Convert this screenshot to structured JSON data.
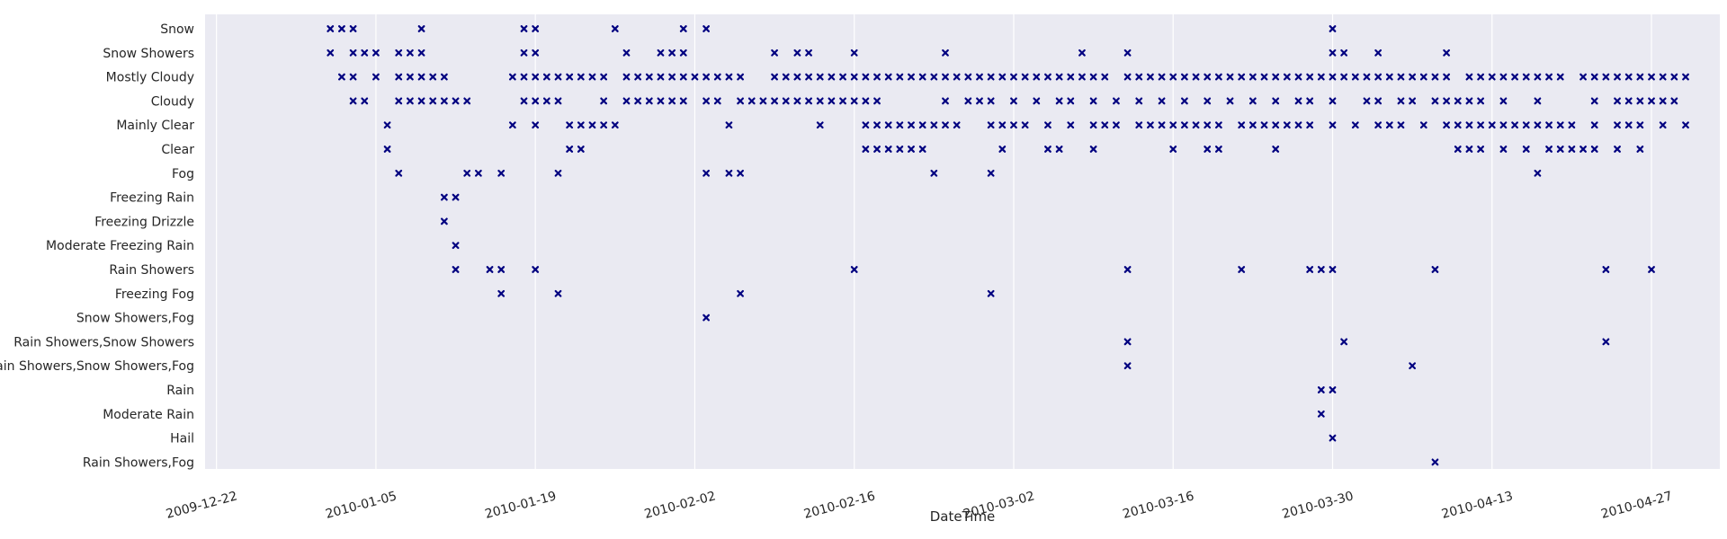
{
  "chart_data": {
    "type": "scatter",
    "xlabel": "DateTime",
    "marker": "x",
    "marker_color": "#000080",
    "background_color": "#EAEAF2",
    "grid": "x-only",
    "x_ticks": [
      "2009-12-22",
      "2010-01-05",
      "2010-01-19",
      "2010-02-02",
      "2010-02-16",
      "2010-03-02",
      "2010-03-16",
      "2010-03-30",
      "2010-04-13",
      "2010-04-27"
    ],
    "xlim": [
      "2009-12-21",
      "2010-05-03"
    ],
    "categories": [
      "Snow",
      "Snow Showers",
      "Mostly Cloudy",
      "Cloudy",
      "Mainly Clear",
      "Clear",
      "Fog",
      "Freezing Rain",
      "Freezing Drizzle",
      "Moderate Freezing Rain",
      "Rain Showers",
      "Freezing Fog",
      "Snow Showers,Fog",
      "Rain Showers,Snow Showers",
      "Rain Showers,Snow Showers,Fog",
      "Rain",
      "Moderate Rain",
      "Hail",
      "Rain Showers,Fog"
    ],
    "points": {
      "Snow": [
        "2010-01-01",
        "2010-01-02",
        "2010-01-03",
        "2010-01-09",
        "2010-01-18",
        "2010-01-19",
        "2010-01-26",
        "2010-02-01",
        "2010-02-03",
        "2010-03-30"
      ],
      "Snow Showers": [
        "2010-01-01",
        "2010-01-03",
        "2010-01-04",
        "2010-01-05",
        "2010-01-07",
        "2010-01-08",
        "2010-01-09",
        "2010-01-18",
        "2010-01-19",
        "2010-01-27",
        "2010-01-30",
        "2010-01-31",
        "2010-02-01",
        "2010-02-09",
        "2010-02-11",
        "2010-02-12",
        "2010-02-16",
        "2010-02-24",
        "2010-03-08",
        "2010-03-12",
        "2010-03-30",
        "2010-03-31",
        "2010-04-03",
        "2010-04-09"
      ],
      "Mostly Cloudy": [
        "2010-01-02",
        "2010-01-03",
        "2010-01-05",
        "2010-01-07",
        "2010-01-08",
        "2010-01-09",
        "2010-01-10",
        "2010-01-11",
        "2010-01-17",
        "2010-01-18",
        "2010-01-19",
        "2010-01-20",
        "2010-01-21",
        "2010-01-22",
        "2010-01-23",
        "2010-01-24",
        "2010-01-25",
        "2010-01-27",
        "2010-01-28",
        "2010-01-29",
        "2010-01-30",
        "2010-01-31",
        "2010-02-01",
        "2010-02-02",
        "2010-02-03",
        "2010-02-04",
        "2010-02-05",
        "2010-02-06",
        "2010-02-09",
        "2010-02-10",
        "2010-02-11",
        "2010-02-12",
        "2010-02-13",
        "2010-02-14",
        "2010-02-15",
        "2010-02-16",
        "2010-02-17",
        "2010-02-18",
        "2010-02-19",
        "2010-02-20",
        "2010-02-21",
        "2010-02-22",
        "2010-02-23",
        "2010-02-24",
        "2010-02-25",
        "2010-02-26",
        "2010-02-27",
        "2010-02-28",
        "2010-03-01",
        "2010-03-02",
        "2010-03-03",
        "2010-03-04",
        "2010-03-05",
        "2010-03-06",
        "2010-03-07",
        "2010-03-08",
        "2010-03-09",
        "2010-03-10",
        "2010-03-12",
        "2010-03-13",
        "2010-03-14",
        "2010-03-15",
        "2010-03-16",
        "2010-03-17",
        "2010-03-18",
        "2010-03-19",
        "2010-03-20",
        "2010-03-21",
        "2010-03-22",
        "2010-03-23",
        "2010-03-24",
        "2010-03-25",
        "2010-03-26",
        "2010-03-27",
        "2010-03-28",
        "2010-03-29",
        "2010-03-30",
        "2010-03-31",
        "2010-04-01",
        "2010-04-02",
        "2010-04-03",
        "2010-04-04",
        "2010-04-05",
        "2010-04-06",
        "2010-04-07",
        "2010-04-08",
        "2010-04-09",
        "2010-04-11",
        "2010-04-12",
        "2010-04-13",
        "2010-04-14",
        "2010-04-15",
        "2010-04-16",
        "2010-04-17",
        "2010-04-18",
        "2010-04-19",
        "2010-04-21",
        "2010-04-22",
        "2010-04-23",
        "2010-04-24",
        "2010-04-25",
        "2010-04-26",
        "2010-04-27",
        "2010-04-28",
        "2010-04-29",
        "2010-04-30"
      ],
      "Cloudy": [
        "2010-01-03",
        "2010-01-04",
        "2010-01-07",
        "2010-01-08",
        "2010-01-09",
        "2010-01-10",
        "2010-01-11",
        "2010-01-12",
        "2010-01-13",
        "2010-01-18",
        "2010-01-19",
        "2010-01-20",
        "2010-01-21",
        "2010-01-25",
        "2010-01-27",
        "2010-01-28",
        "2010-01-29",
        "2010-01-30",
        "2010-01-31",
        "2010-02-01",
        "2010-02-03",
        "2010-02-04",
        "2010-02-06",
        "2010-02-07",
        "2010-02-08",
        "2010-02-09",
        "2010-02-10",
        "2010-02-11",
        "2010-02-12",
        "2010-02-13",
        "2010-02-14",
        "2010-02-15",
        "2010-02-16",
        "2010-02-17",
        "2010-02-18",
        "2010-02-24",
        "2010-02-26",
        "2010-02-27",
        "2010-02-28",
        "2010-03-02",
        "2010-03-04",
        "2010-03-06",
        "2010-03-07",
        "2010-03-09",
        "2010-03-11",
        "2010-03-13",
        "2010-03-15",
        "2010-03-17",
        "2010-03-19",
        "2010-03-21",
        "2010-03-23",
        "2010-03-25",
        "2010-03-27",
        "2010-03-28",
        "2010-03-30",
        "2010-04-02",
        "2010-04-03",
        "2010-04-05",
        "2010-04-06",
        "2010-04-08",
        "2010-04-09",
        "2010-04-10",
        "2010-04-11",
        "2010-04-12",
        "2010-04-14",
        "2010-04-17",
        "2010-04-22",
        "2010-04-24",
        "2010-04-25",
        "2010-04-26",
        "2010-04-27",
        "2010-04-28",
        "2010-04-29"
      ],
      "Mainly Clear": [
        "2010-01-06",
        "2010-01-17",
        "2010-01-19",
        "2010-01-22",
        "2010-01-23",
        "2010-01-24",
        "2010-01-25",
        "2010-01-26",
        "2010-02-05",
        "2010-02-13",
        "2010-02-17",
        "2010-02-18",
        "2010-02-19",
        "2010-02-20",
        "2010-02-21",
        "2010-02-22",
        "2010-02-23",
        "2010-02-24",
        "2010-02-25",
        "2010-02-28",
        "2010-03-01",
        "2010-03-02",
        "2010-03-03",
        "2010-03-05",
        "2010-03-07",
        "2010-03-09",
        "2010-03-10",
        "2010-03-11",
        "2010-03-13",
        "2010-03-14",
        "2010-03-15",
        "2010-03-16",
        "2010-03-17",
        "2010-03-18",
        "2010-03-19",
        "2010-03-20",
        "2010-03-22",
        "2010-03-23",
        "2010-03-24",
        "2010-03-25",
        "2010-03-26",
        "2010-03-27",
        "2010-03-28",
        "2010-03-30",
        "2010-04-01",
        "2010-04-03",
        "2010-04-04",
        "2010-04-05",
        "2010-04-07",
        "2010-04-09",
        "2010-04-10",
        "2010-04-11",
        "2010-04-12",
        "2010-04-13",
        "2010-04-14",
        "2010-04-15",
        "2010-04-16",
        "2010-04-17",
        "2010-04-18",
        "2010-04-19",
        "2010-04-20",
        "2010-04-22",
        "2010-04-24",
        "2010-04-25",
        "2010-04-26",
        "2010-04-28",
        "2010-04-30"
      ],
      "Clear": [
        "2010-01-06",
        "2010-01-22",
        "2010-01-23",
        "2010-02-17",
        "2010-02-18",
        "2010-02-19",
        "2010-02-20",
        "2010-02-21",
        "2010-02-22",
        "2010-03-01",
        "2010-03-05",
        "2010-03-06",
        "2010-03-09",
        "2010-03-16",
        "2010-03-19",
        "2010-03-20",
        "2010-03-25",
        "2010-04-10",
        "2010-04-11",
        "2010-04-12",
        "2010-04-14",
        "2010-04-16",
        "2010-04-18",
        "2010-04-19",
        "2010-04-20",
        "2010-04-21",
        "2010-04-22",
        "2010-04-24",
        "2010-04-26"
      ],
      "Fog": [
        "2010-01-07",
        "2010-01-13",
        "2010-01-14",
        "2010-01-16",
        "2010-01-21",
        "2010-02-03",
        "2010-02-05",
        "2010-02-06",
        "2010-02-23",
        "2010-02-28",
        "2010-04-17"
      ],
      "Freezing Rain": [
        "2010-01-11",
        "2010-01-12"
      ],
      "Freezing Drizzle": [
        "2010-01-11"
      ],
      "Moderate Freezing Rain": [
        "2010-01-12"
      ],
      "Rain Showers": [
        "2010-01-12",
        "2010-01-15",
        "2010-01-16",
        "2010-01-19",
        "2010-02-16",
        "2010-03-12",
        "2010-03-22",
        "2010-03-28",
        "2010-03-29",
        "2010-03-30",
        "2010-04-08",
        "2010-04-23",
        "2010-04-27"
      ],
      "Freezing Fog": [
        "2010-01-16",
        "2010-01-21",
        "2010-02-06",
        "2010-02-28"
      ],
      "Snow Showers,Fog": [
        "2010-02-03"
      ],
      "Rain Showers,Snow Showers": [
        "2010-03-12",
        "2010-03-31",
        "2010-04-23"
      ],
      "Rain Showers,Snow Showers,Fog": [
        "2010-03-12",
        "2010-04-06"
      ],
      "Rain": [
        "2010-03-29",
        "2010-03-30"
      ],
      "Moderate Rain": [
        "2010-03-29"
      ],
      "Hail": [
        "2010-03-30"
      ],
      "Rain Showers,Fog": [
        "2010-04-08"
      ]
    }
  }
}
